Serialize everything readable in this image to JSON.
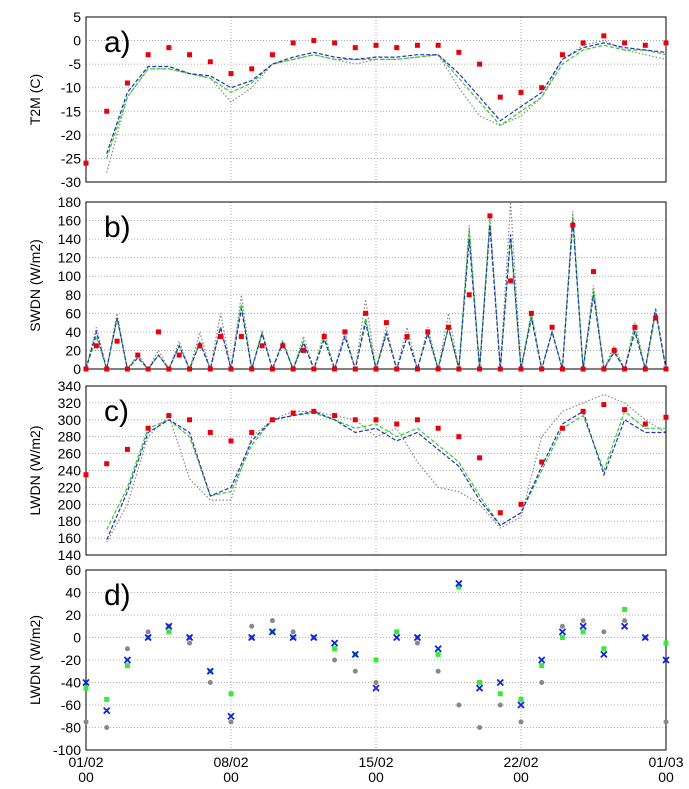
{
  "chart_data": [
    {
      "type": "line",
      "annotation": "a)",
      "y_label": "T2M (C)",
      "x": [
        0,
        1,
        2,
        3,
        4,
        5,
        6,
        7,
        8,
        9,
        10,
        11,
        12,
        13,
        14,
        15,
        16,
        17,
        18,
        19,
        20,
        21,
        22,
        23,
        24,
        25,
        26,
        27,
        28
      ],
      "xlim": [
        0,
        28
      ],
      "xticks": [
        0,
        7,
        14,
        21,
        28
      ],
      "ylim": [
        -30,
        5
      ],
      "yticks": [
        -30,
        -25,
        -20,
        -15,
        -10,
        -5,
        0,
        5
      ],
      "grid": true,
      "series": [
        {
          "color": "#888888",
          "style": "dotted",
          "values": [
            null,
            -28,
            -12,
            -6,
            -6,
            -7,
            -8,
            -13,
            -10,
            -5,
            -4,
            -3,
            -4,
            -5,
            -4,
            -4,
            -3.5,
            -3,
            -10,
            -16,
            -18,
            -16,
            -12,
            -4,
            -1,
            0,
            -2,
            -3,
            -4
          ]
        },
        {
          "color": "#33cc33",
          "style": "dashed",
          "values": [
            null,
            -25,
            -12,
            -6,
            -6,
            -7,
            -8,
            -11,
            -9,
            -5,
            -4,
            -3,
            -4,
            -4,
            -4,
            -4,
            -3.5,
            -3,
            -8,
            -13,
            -18,
            -15,
            -12,
            -5,
            -2,
            -1,
            -2,
            -2,
            -3
          ]
        },
        {
          "color": "#2233bb",
          "style": "dashed",
          "values": [
            null,
            -24,
            -11,
            -5.5,
            -5.5,
            -7,
            -7.5,
            -10,
            -8.5,
            -5,
            -3.5,
            -2.5,
            -3.5,
            -4,
            -3.5,
            -3.5,
            -3,
            -3,
            -7,
            -12,
            -17,
            -14,
            -11,
            -4,
            -1.5,
            -0.5,
            -1.5,
            -2,
            -2.5
          ]
        },
        {
          "color": "#e8000b",
          "style": "square",
          "values": [
            -26,
            -15,
            -9,
            -3,
            -1.5,
            -3,
            -4.5,
            -7,
            -6,
            -3,
            -0.5,
            0,
            -0.5,
            -1.5,
            -1,
            -1.5,
            -1,
            -1,
            -2.5,
            -5,
            -12,
            -11,
            -10,
            -3,
            -0.5,
            1,
            -0.5,
            -1,
            -0.5
          ]
        }
      ]
    },
    {
      "type": "line",
      "annotation": "b)",
      "y_label": "SWDN (W/m2)",
      "x": [
        0,
        0.5,
        1,
        1.5,
        2,
        2.5,
        3,
        3.5,
        4,
        4.5,
        5,
        5.5,
        6,
        6.5,
        7,
        7.5,
        8,
        8.5,
        9,
        9.5,
        10,
        10.5,
        11,
        11.5,
        12,
        12.5,
        13,
        13.5,
        14,
        14.5,
        15,
        15.5,
        16,
        16.5,
        17,
        17.5,
        18,
        18.5,
        19,
        19.5,
        20,
        20.5,
        21,
        21.5,
        22,
        22.5,
        23,
        23.5,
        24,
        24.5,
        25,
        25.5,
        26,
        26.5,
        27,
        27.5,
        28
      ],
      "xlim": [
        0,
        28
      ],
      "xticks": [
        0,
        7,
        14,
        21,
        28
      ],
      "ylim": [
        0,
        180
      ],
      "yticks": [
        0,
        20,
        40,
        60,
        80,
        100,
        120,
        140,
        160,
        180
      ],
      "grid": true,
      "series": [
        {
          "color": "#888888",
          "style": "dotted",
          "values": [
            0,
            45,
            0,
            60,
            0,
            15,
            0,
            20,
            0,
            30,
            0,
            40,
            0,
            60,
            0,
            80,
            0,
            40,
            0,
            30,
            0,
            35,
            0,
            40,
            0,
            40,
            0,
            75,
            0,
            45,
            0,
            45,
            0,
            45,
            0,
            60,
            0,
            155,
            0,
            165,
            0,
            180,
            0,
            60,
            0,
            40,
            0,
            170,
            0,
            90,
            0,
            25,
            0,
            50,
            0,
            60,
            0
          ]
        },
        {
          "color": "#33cc33",
          "style": "dashed",
          "values": [
            0,
            35,
            0,
            55,
            0,
            15,
            0,
            15,
            0,
            25,
            0,
            30,
            0,
            45,
            0,
            70,
            0,
            40,
            0,
            30,
            0,
            30,
            0,
            35,
            0,
            35,
            0,
            55,
            0,
            40,
            0,
            35,
            0,
            40,
            0,
            45,
            0,
            150,
            0,
            160,
            0,
            140,
            0,
            60,
            0,
            40,
            0,
            165,
            0,
            85,
            0,
            20,
            0,
            45,
            0,
            60,
            0
          ]
        },
        {
          "color": "#2233bb",
          "style": "dashed",
          "values": [
            0,
            40,
            0,
            55,
            0,
            12,
            0,
            15,
            0,
            25,
            0,
            28,
            0,
            45,
            0,
            65,
            0,
            38,
            0,
            28,
            0,
            28,
            0,
            32,
            0,
            35,
            0,
            50,
            0,
            38,
            0,
            35,
            0,
            38,
            0,
            45,
            0,
            140,
            0,
            155,
            0,
            145,
            0,
            55,
            0,
            40,
            0,
            160,
            0,
            80,
            0,
            18,
            0,
            40,
            0,
            65,
            0
          ]
        },
        {
          "color": "#e8000b",
          "style": "square",
          "values": [
            0,
            25,
            0,
            30,
            0,
            15,
            0,
            40,
            0,
            15,
            0,
            25,
            0,
            35,
            0,
            35,
            0,
            25,
            0,
            25,
            0,
            20,
            0,
            35,
            0,
            40,
            0,
            60,
            0,
            50,
            0,
            35,
            0,
            40,
            0,
            45,
            0,
            80,
            0,
            165,
            0,
            95,
            0,
            60,
            0,
            45,
            0,
            155,
            0,
            105,
            0,
            20,
            0,
            45,
            0,
            55,
            0
          ]
        }
      ]
    },
    {
      "type": "line",
      "annotation": "c)",
      "y_label": "LWDN (W/m2)",
      "x": [
        0,
        1,
        2,
        3,
        4,
        5,
        6,
        7,
        8,
        9,
        10,
        11,
        12,
        13,
        14,
        15,
        16,
        17,
        18,
        19,
        20,
        21,
        22,
        23,
        24,
        25,
        26,
        27,
        28
      ],
      "xlim": [
        0,
        28
      ],
      "xticks": [
        0,
        7,
        14,
        21,
        28
      ],
      "ylim": [
        140,
        340
      ],
      "yticks": [
        140,
        160,
        180,
        200,
        220,
        240,
        260,
        280,
        300,
        320,
        340
      ],
      "grid": true,
      "series": [
        {
          "color": "#888888",
          "style": "dotted",
          "values": [
            null,
            155,
            200,
            280,
            305,
            230,
            205,
            205,
            280,
            300,
            310,
            310,
            305,
            300,
            280,
            290,
            250,
            220,
            215,
            200,
            172,
            185,
            280,
            310,
            320,
            330,
            320,
            300,
            285
          ]
        },
        {
          "color": "#33cc33",
          "style": "dashed",
          "values": [
            null,
            170,
            220,
            290,
            300,
            280,
            210,
            215,
            270,
            300,
            305,
            308,
            300,
            290,
            295,
            280,
            290,
            270,
            250,
            210,
            175,
            190,
            240,
            290,
            305,
            240,
            310,
            290,
            290
          ]
        },
        {
          "color": "#2233bb",
          "style": "dashed",
          "values": [
            null,
            158,
            215,
            285,
            300,
            285,
            210,
            220,
            275,
            300,
            305,
            310,
            300,
            285,
            290,
            275,
            285,
            265,
            245,
            205,
            175,
            190,
            245,
            295,
            310,
            235,
            300,
            285,
            285
          ]
        },
        {
          "color": "#e8000b",
          "style": "square",
          "values": [
            235,
            248,
            265,
            290,
            305,
            300,
            285,
            275,
            285,
            300,
            308,
            310,
            305,
            300,
            300,
            295,
            300,
            290,
            280,
            255,
            190,
            200,
            250,
            290,
            310,
            318,
            312,
            295,
            303
          ]
        }
      ]
    },
    {
      "type": "scatter",
      "annotation": "d)",
      "y_label": "LWDN (W/m2)",
      "x": [
        0,
        1,
        2,
        3,
        4,
        5,
        6,
        7,
        8,
        9,
        10,
        11,
        12,
        13,
        14,
        15,
        16,
        17,
        18,
        19,
        20,
        21,
        22,
        23,
        24,
        25,
        26,
        27,
        28
      ],
      "xlim": [
        0,
        28
      ],
      "xticks": [
        {
          "value": 0,
          "label": "01/02\n00"
        },
        {
          "value": 7,
          "label": "08/02\n00"
        },
        {
          "value": 14,
          "label": "15/02\n00"
        },
        {
          "value": 21,
          "label": "22/02\n00"
        },
        {
          "value": 28,
          "label": "01/03\n00"
        }
      ],
      "ylim": [
        -100,
        60
      ],
      "yticks": [
        -100,
        -80,
        -60,
        -40,
        -20,
        0,
        20,
        40,
        60
      ],
      "grid": true,
      "series": [
        {
          "color": "#888888",
          "style": "circle",
          "values": [
            -75,
            -80,
            -10,
            5,
            10,
            -5,
            -40,
            -75,
            10,
            15,
            5,
            0,
            -20,
            -30,
            -40,
            5,
            -5,
            -30,
            -60,
            -80,
            -60,
            -75,
            -40,
            10,
            15,
            5,
            15,
            0,
            -75
          ]
        },
        {
          "color": "#33ee33",
          "style": "square",
          "values": [
            -45,
            -55,
            -25,
            0,
            5,
            0,
            -30,
            -50,
            0,
            5,
            0,
            0,
            -10,
            -15,
            -20,
            5,
            0,
            -15,
            45,
            -40,
            -50,
            -55,
            -25,
            0,
            5,
            -10,
            25,
            0,
            -5
          ]
        },
        {
          "color": "#1122dd",
          "style": "cross",
          "values": [
            -40,
            -65,
            -20,
            0,
            10,
            0,
            -30,
            -70,
            0,
            5,
            0,
            0,
            -5,
            -15,
            -45,
            0,
            0,
            -10,
            48,
            -45,
            -40,
            -60,
            -20,
            5,
            10,
            -15,
            10,
            0,
            -20
          ]
        }
      ]
    }
  ]
}
